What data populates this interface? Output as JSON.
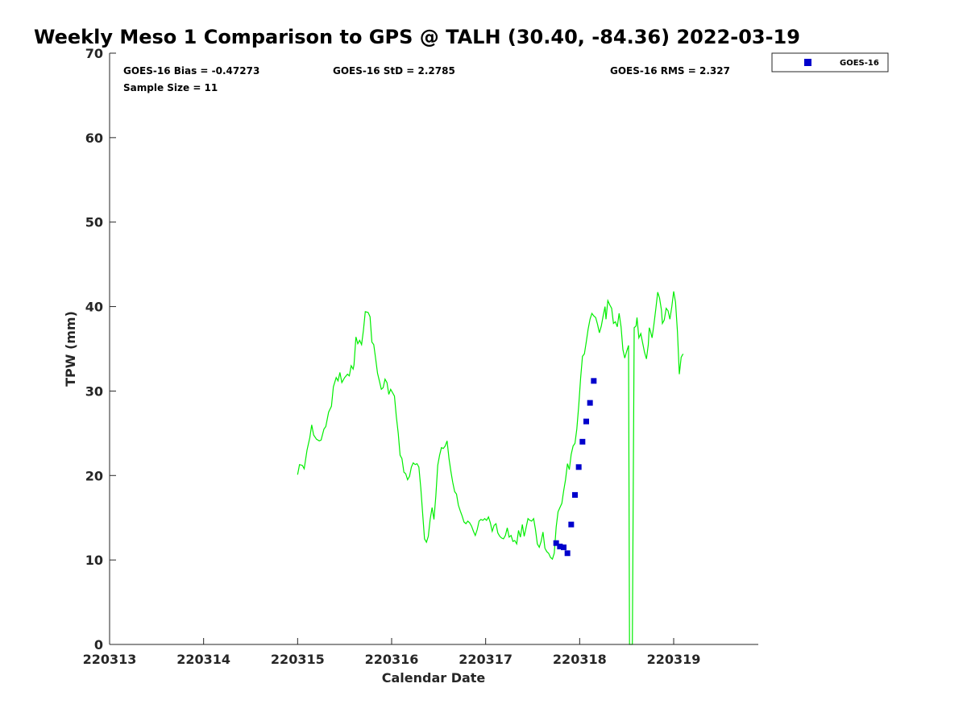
{
  "chart_data": {
    "type": "line",
    "title": "Weekly Meso 1 Comparison to GPS @ TALH (30.40, -84.36) 2022-03-19",
    "xlabel": "Calendar Date",
    "ylabel": "TPW (mm)",
    "ylim": [
      0,
      70
    ],
    "xlim": [
      0,
      6.9
    ],
    "grid": false,
    "legend_position": "top-right",
    "x_ticks": [
      {
        "v": 0,
        "label": "220313"
      },
      {
        "v": 1,
        "label": "220314"
      },
      {
        "v": 2,
        "label": "220315"
      },
      {
        "v": 3,
        "label": "220316"
      },
      {
        "v": 4,
        "label": "220317"
      },
      {
        "v": 5,
        "label": "220318"
      },
      {
        "v": 6,
        "label": "220319"
      }
    ],
    "y_ticks": [
      0,
      10,
      20,
      30,
      40,
      50,
      60,
      70
    ],
    "stats": {
      "bias": "GOES-16 Bias = -0.47273",
      "std": "GOES-16 StD = 2.2785",
      "rms": "GOES-16 RMS = 2.327",
      "sample": "Sample Size = 11"
    },
    "series": [
      {
        "kind": "line",
        "color": "#00ee00",
        "points": [
          [
            2.0,
            20.1
          ],
          [
            2.02,
            21.3
          ],
          [
            2.05,
            21.2
          ],
          [
            2.07,
            20.8
          ],
          [
            2.1,
            23.0
          ],
          [
            2.13,
            24.5
          ],
          [
            2.15,
            26.0
          ],
          [
            2.17,
            24.8
          ],
          [
            2.2,
            24.3
          ],
          [
            2.23,
            24.1
          ],
          [
            2.25,
            24.2
          ],
          [
            2.28,
            25.5
          ],
          [
            2.3,
            25.8
          ],
          [
            2.33,
            27.5
          ],
          [
            2.36,
            28.2
          ],
          [
            2.38,
            30.5
          ],
          [
            2.41,
            31.6
          ],
          [
            2.43,
            31.2
          ],
          [
            2.45,
            32.2
          ],
          [
            2.47,
            31.0
          ],
          [
            2.5,
            31.6
          ],
          [
            2.53,
            32.0
          ],
          [
            2.55,
            31.8
          ],
          [
            2.57,
            33.0
          ],
          [
            2.59,
            32.6
          ],
          [
            2.6,
            33.1
          ],
          [
            2.62,
            36.4
          ],
          [
            2.64,
            35.6
          ],
          [
            2.66,
            36.0
          ],
          [
            2.68,
            35.5
          ],
          [
            2.7,
            37.2
          ],
          [
            2.72,
            39.4
          ],
          [
            2.75,
            39.3
          ],
          [
            2.77,
            38.8
          ],
          [
            2.79,
            35.8
          ],
          [
            2.81,
            35.5
          ],
          [
            2.83,
            33.8
          ],
          [
            2.85,
            32.1
          ],
          [
            2.87,
            31.2
          ],
          [
            2.89,
            30.2
          ],
          [
            2.91,
            30.4
          ],
          [
            2.93,
            31.4
          ],
          [
            2.95,
            31.0
          ],
          [
            2.97,
            29.6
          ],
          [
            2.99,
            30.2
          ],
          [
            3.01,
            29.8
          ],
          [
            3.03,
            29.4
          ],
          [
            3.05,
            27.0
          ],
          [
            3.07,
            25.0
          ],
          [
            3.09,
            22.4
          ],
          [
            3.11,
            22.0
          ],
          [
            3.13,
            20.4
          ],
          [
            3.15,
            20.2
          ],
          [
            3.17,
            19.5
          ],
          [
            3.19,
            19.9
          ],
          [
            3.21,
            21.0
          ],
          [
            3.23,
            21.5
          ],
          [
            3.25,
            21.3
          ],
          [
            3.27,
            21.4
          ],
          [
            3.29,
            21.0
          ],
          [
            3.31,
            18.5
          ],
          [
            3.33,
            15.5
          ],
          [
            3.35,
            12.5
          ],
          [
            3.37,
            12.1
          ],
          [
            3.39,
            12.8
          ],
          [
            3.41,
            14.8
          ],
          [
            3.43,
            16.2
          ],
          [
            3.45,
            14.8
          ],
          [
            3.47,
            17.5
          ],
          [
            3.49,
            21.2
          ],
          [
            3.51,
            22.4
          ],
          [
            3.53,
            23.3
          ],
          [
            3.55,
            23.2
          ],
          [
            3.57,
            23.5
          ],
          [
            3.59,
            24.1
          ],
          [
            3.61,
            22.0
          ],
          [
            3.63,
            20.5
          ],
          [
            3.65,
            19.2
          ],
          [
            3.67,
            18.1
          ],
          [
            3.69,
            17.8
          ],
          [
            3.71,
            16.5
          ],
          [
            3.73,
            15.8
          ],
          [
            3.75,
            15.2
          ],
          [
            3.77,
            14.5
          ],
          [
            3.79,
            14.3
          ],
          [
            3.81,
            14.6
          ],
          [
            3.83,
            14.4
          ],
          [
            3.85,
            14.0
          ],
          [
            3.87,
            13.4
          ],
          [
            3.89,
            12.9
          ],
          [
            3.91,
            13.6
          ],
          [
            3.93,
            14.6
          ],
          [
            3.95,
            14.8
          ],
          [
            3.97,
            14.7
          ],
          [
            3.99,
            14.9
          ],
          [
            4.01,
            14.7
          ],
          [
            4.03,
            15.1
          ],
          [
            4.05,
            14.4
          ],
          [
            4.07,
            13.4
          ],
          [
            4.09,
            14.1
          ],
          [
            4.11,
            14.3
          ],
          [
            4.13,
            13.2
          ],
          [
            4.15,
            12.8
          ],
          [
            4.17,
            12.6
          ],
          [
            4.19,
            12.5
          ],
          [
            4.21,
            12.9
          ],
          [
            4.23,
            13.8
          ],
          [
            4.25,
            12.7
          ],
          [
            4.27,
            12.9
          ],
          [
            4.29,
            12.2
          ],
          [
            4.31,
            12.3
          ],
          [
            4.33,
            11.9
          ],
          [
            4.35,
            13.5
          ],
          [
            4.37,
            12.7
          ],
          [
            4.39,
            14.2
          ],
          [
            4.41,
            12.8
          ],
          [
            4.43,
            13.8
          ],
          [
            4.45,
            14.9
          ],
          [
            4.47,
            14.7
          ],
          [
            4.49,
            14.6
          ],
          [
            4.51,
            14.9
          ],
          [
            4.53,
            13.6
          ],
          [
            4.55,
            11.9
          ],
          [
            4.57,
            11.5
          ],
          [
            4.59,
            12.2
          ],
          [
            4.61,
            13.3
          ],
          [
            4.63,
            11.4
          ],
          [
            4.65,
            11.0
          ],
          [
            4.67,
            10.8
          ],
          [
            4.69,
            10.3
          ],
          [
            4.71,
            10.1
          ],
          [
            4.73,
            10.8
          ],
          [
            4.75,
            13.9
          ],
          [
            4.77,
            15.7
          ],
          [
            4.79,
            16.2
          ],
          [
            4.81,
            16.7
          ],
          [
            4.83,
            18.2
          ],
          [
            4.85,
            19.5
          ],
          [
            4.87,
            21.4
          ],
          [
            4.89,
            20.7
          ],
          [
            4.91,
            22.5
          ],
          [
            4.93,
            23.5
          ],
          [
            4.95,
            23.8
          ],
          [
            4.97,
            25.5
          ],
          [
            4.99,
            28.3
          ],
          [
            5.01,
            31.5
          ],
          [
            5.03,
            34.1
          ],
          [
            5.05,
            34.4
          ],
          [
            5.07,
            35.8
          ],
          [
            5.09,
            37.3
          ],
          [
            5.11,
            38.5
          ],
          [
            5.13,
            39.2
          ],
          [
            5.15,
            38.9
          ],
          [
            5.17,
            38.7
          ],
          [
            5.19,
            37.9
          ],
          [
            5.21,
            36.9
          ],
          [
            5.23,
            37.7
          ],
          [
            5.25,
            38.9
          ],
          [
            5.27,
            40.0
          ],
          [
            5.28,
            38.5
          ],
          [
            5.3,
            40.7
          ],
          [
            5.32,
            40.2
          ],
          [
            5.34,
            39.8
          ],
          [
            5.36,
            38.0
          ],
          [
            5.38,
            38.2
          ],
          [
            5.4,
            37.6
          ],
          [
            5.42,
            39.2
          ],
          [
            5.44,
            37.6
          ],
          [
            5.46,
            34.9
          ],
          [
            5.48,
            33.9
          ],
          [
            5.5,
            34.7
          ],
          [
            5.52,
            35.4
          ],
          [
            5.53,
            0
          ],
          [
            5.56,
            0
          ],
          [
            5.58,
            37.5
          ],
          [
            5.6,
            37.7
          ],
          [
            5.61,
            38.7
          ],
          [
            5.63,
            36.3
          ],
          [
            5.65,
            36.8
          ],
          [
            5.67,
            35.7
          ],
          [
            5.69,
            34.6
          ],
          [
            5.71,
            33.8
          ],
          [
            5.73,
            35.5
          ],
          [
            5.74,
            37.5
          ],
          [
            5.75,
            37.2
          ],
          [
            5.77,
            36.3
          ],
          [
            5.79,
            37.9
          ],
          [
            5.81,
            39.7
          ],
          [
            5.83,
            41.7
          ],
          [
            5.85,
            41.0
          ],
          [
            5.87,
            39.6
          ],
          [
            5.88,
            38.0
          ],
          [
            5.9,
            38.4
          ],
          [
            5.92,
            39.8
          ],
          [
            5.94,
            39.5
          ],
          [
            5.96,
            38.5
          ],
          [
            5.98,
            40.0
          ],
          [
            6.0,
            41.8
          ],
          [
            6.02,
            40.5
          ],
          [
            6.04,
            37.0
          ],
          [
            6.06,
            32.0
          ],
          [
            6.08,
            34.0
          ],
          [
            6.1,
            34.4
          ]
        ]
      },
      {
        "kind": "scatter",
        "name": "GOES-16",
        "color": "#0000cc",
        "points": [
          [
            4.75,
            12.0
          ],
          [
            4.79,
            11.6
          ],
          [
            4.83,
            11.5
          ],
          [
            4.87,
            10.8
          ],
          [
            4.91,
            14.2
          ],
          [
            4.95,
            17.7
          ],
          [
            4.99,
            21.0
          ],
          [
            5.03,
            24.0
          ],
          [
            5.07,
            26.4
          ],
          [
            5.11,
            28.6
          ],
          [
            5.15,
            31.2
          ]
        ]
      }
    ]
  }
}
